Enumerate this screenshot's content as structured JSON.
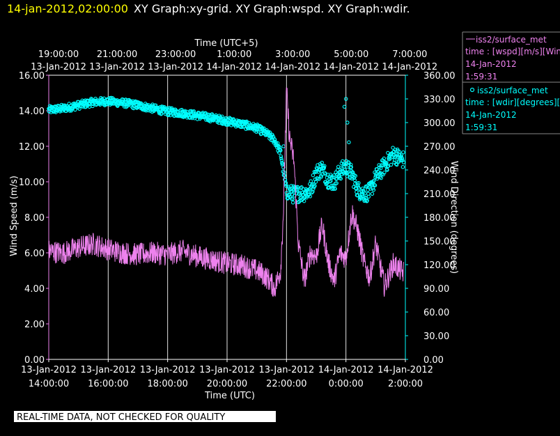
{
  "header": {
    "datetime": "14-jan-2012,02:00:00",
    "graphs": "XY Graph:xy-grid.  XY Graph:wspd.  XY Graph:wdir."
  },
  "notice": "REAL-TIME DATA, NOT CHECKED FOR QUALITY",
  "colors": {
    "wspd": "#ee82ee",
    "wdir": "#00ffff",
    "title_time": "#ffff00",
    "grid": "#ffffff"
  },
  "legend": [
    {
      "symbol": "line",
      "name": "iss2/surface_met",
      "desc": "time : [wspd][m/s][Wind",
      "date": "14-Jan-2012",
      "time": "1:59:31"
    },
    {
      "symbol": "circle",
      "name": "iss2/surface_met",
      "desc": "time : [wdir][degrees][W",
      "date": "14-Jan-2012",
      "time": "1:59:31"
    }
  ],
  "chart_data": {
    "type": "line",
    "top_axis": {
      "label": "Time (UTC+5)",
      "ticks": [
        [
          "19:00:00",
          "13-Jan-2012"
        ],
        [
          "21:00:00",
          "13-Jan-2012"
        ],
        [
          "23:00:00",
          "13-Jan-2012"
        ],
        [
          "1:00:00",
          "14-Jan-2012"
        ],
        [
          "3:00:00",
          "14-Jan-2012"
        ],
        [
          "5:00:00",
          "14-Jan-2012"
        ],
        [
          "7:00:00",
          "14-Jan-2012"
        ]
      ]
    },
    "bottom_axis": {
      "label": "Time (UTC)",
      "ticks": [
        [
          "13-Jan-2012",
          "14:00:00"
        ],
        [
          "13-Jan-2012",
          "16:00:00"
        ],
        [
          "13-Jan-2012",
          "18:00:00"
        ],
        [
          "13-Jan-2012",
          "20:00:00"
        ],
        [
          "13-Jan-2012",
          "22:00:00"
        ],
        [
          "14-Jan-2012",
          "0:00:00"
        ],
        [
          "14-Jan-2012",
          "2:00:00"
        ]
      ],
      "xlim": [
        "13-Jan-2012 14:00",
        "14-Jan-2012 02:00"
      ]
    },
    "left_axis": {
      "label": "Wind Speed (m/s)",
      "ticks": [
        "0.00",
        "2.00",
        "4.00",
        "6.00",
        "8.00",
        "10.00",
        "12.00",
        "14.00",
        "16.00"
      ],
      "ylim": [
        0,
        16
      ]
    },
    "right_axis": {
      "label": "Wind Direction (degrees)",
      "ticks": [
        "0.00",
        "30.00",
        "60.00",
        "90.00",
        "120.00",
        "150.00",
        "180.00",
        "210.00",
        "240.00",
        "270.00",
        "300.00",
        "330.00",
        "360.00"
      ],
      "ylim": [
        0,
        360
      ]
    },
    "grid": "vertical lines at bottom-axis ticks",
    "series": [
      {
        "key": "wspd",
        "unit": "m/s",
        "style": "line",
        "x_hours_utc_from_13jan_0000": [
          14.0,
          14.5,
          15.0,
          15.5,
          16.0,
          16.5,
          17.0,
          17.5,
          18.0,
          18.5,
          19.0,
          19.5,
          20.0,
          20.5,
          21.0,
          21.2,
          21.4,
          21.6,
          21.8,
          21.9,
          22.0,
          22.1,
          22.25,
          22.4,
          22.6,
          22.8,
          23.0,
          23.2,
          23.4,
          23.6,
          23.8,
          24.0,
          24.2,
          24.4,
          24.6,
          24.8,
          25.0,
          25.3,
          25.6,
          25.9
        ],
        "y": [
          6.1,
          6.0,
          6.3,
          6.5,
          6.2,
          6.0,
          5.9,
          6.0,
          5.9,
          6.1,
          5.8,
          5.6,
          5.4,
          5.3,
          5.0,
          4.8,
          4.5,
          4.0,
          5.0,
          8.5,
          15.2,
          12.5,
          11.2,
          6.5,
          4.4,
          6.0,
          5.8,
          7.6,
          5.5,
          4.4,
          6.0,
          5.7,
          8.3,
          7.2,
          5.5,
          4.6,
          6.5,
          4.1,
          5.4,
          4.9
        ]
      },
      {
        "key": "wdir",
        "unit": "degrees",
        "style": "circles",
        "x_hours_utc_from_13jan_0000": [
          14.0,
          14.5,
          15.0,
          15.5,
          16.0,
          16.5,
          17.0,
          17.5,
          18.0,
          18.5,
          19.0,
          19.5,
          20.0,
          20.5,
          21.0,
          21.3,
          21.6,
          21.8,
          22.0,
          22.2,
          22.4,
          22.6,
          22.8,
          23.0,
          23.2,
          23.4,
          23.6,
          23.8,
          24.0,
          24.2,
          24.4,
          24.6,
          24.8,
          25.0,
          25.3,
          25.6,
          25.9
        ],
        "y": [
          316,
          318,
          322,
          326,
          327,
          325,
          322,
          318,
          314,
          312,
          309,
          306,
          302,
          298,
          293,
          287,
          278,
          262,
          214,
          209,
          210,
          211,
          214,
          236,
          242,
          228,
          224,
          238,
          244,
          235,
          215,
          210,
          212,
          230,
          246,
          260,
          253
        ]
      }
    ]
  }
}
